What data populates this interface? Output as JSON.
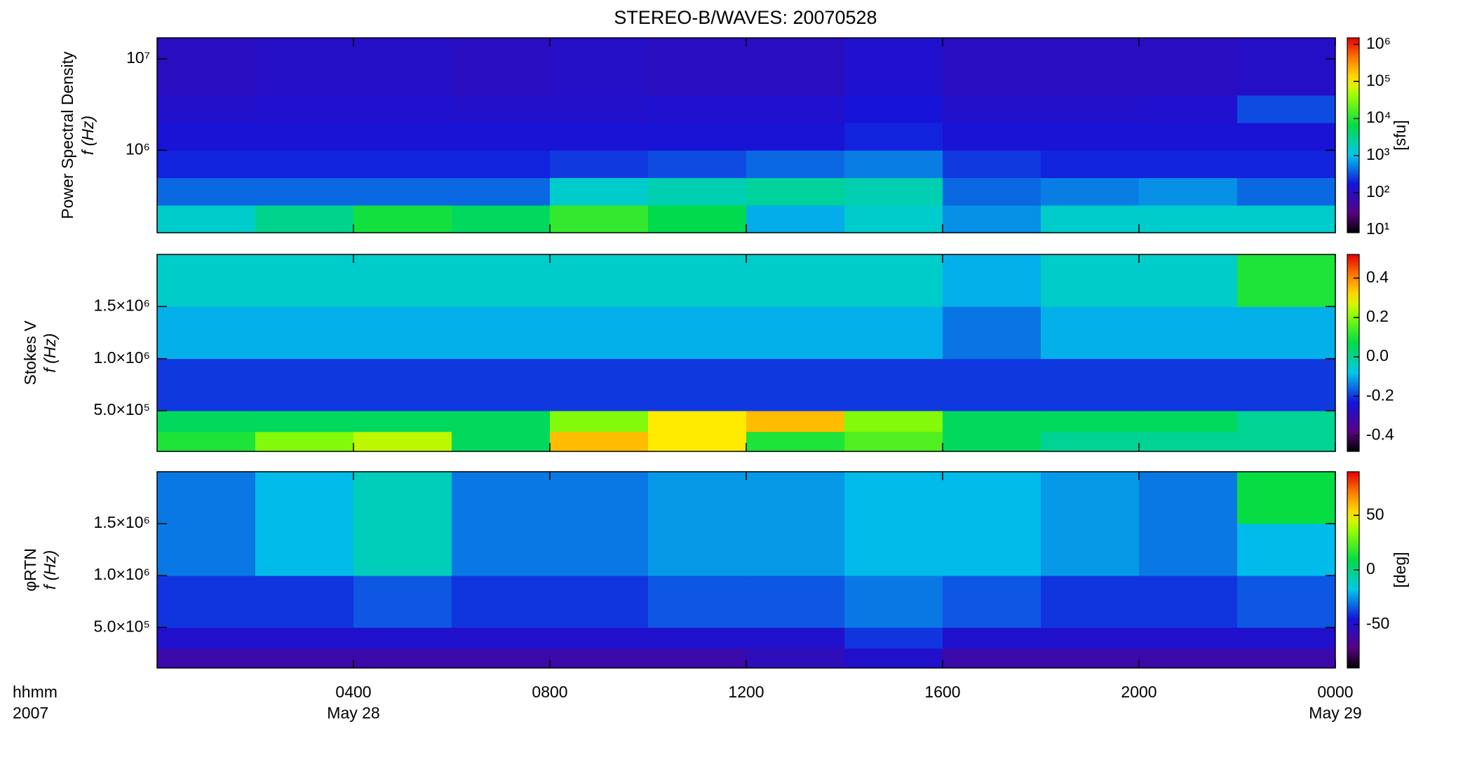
{
  "chart_data": [
    {
      "type": "heatmap",
      "title": "STEREO-B/WAVES: 20070528",
      "ylabel": [
        "Power Spectral Density",
        "f (Hz)"
      ],
      "ylog": true,
      "ylim": [
        125000,
        17000000
      ],
      "yticks": [
        {
          "value": 1000000,
          "label": "10⁶"
        },
        {
          "value": 10000000,
          "label": "10⁷"
        }
      ],
      "x_edges": [
        0,
        2,
        4,
        6,
        8,
        10,
        12,
        14,
        16,
        18,
        20,
        22,
        24
      ],
      "y_edges": [
        125000,
        250000,
        500000,
        1000000,
        2000000,
        4000000,
        17000000
      ],
      "z": [
        [
          1500,
          3000,
          8000,
          5000,
          12000,
          6000,
          800,
          1500,
          600,
          1500,
          1500,
          1500
        ],
        [
          400,
          400,
          400,
          400,
          1500,
          2000,
          2500,
          2000,
          400,
          500,
          600,
          400
        ],
        [
          200,
          200,
          200,
          200,
          250,
          300,
          400,
          500,
          250,
          200,
          200,
          200
        ],
        [
          150,
          150,
          150,
          150,
          150,
          150,
          150,
          200,
          150,
          150,
          150,
          150
        ],
        [
          120,
          130,
          130,
          120,
          120,
          130,
          130,
          160,
          120,
          120,
          130,
          300
        ],
        [
          100,
          110,
          110,
          100,
          110,
          100,
          100,
          130,
          100,
          100,
          100,
          110
        ]
      ],
      "clog": true,
      "clim": [
        8.3,
        1500000
      ],
      "cticks": [
        {
          "value": 10,
          "label": "10¹"
        },
        {
          "value": 100,
          "label": "10²"
        },
        {
          "value": 1000,
          "label": "10³"
        },
        {
          "value": 10000,
          "label": "10⁴"
        },
        {
          "value": 100000,
          "label": "10⁵"
        },
        {
          "value": 1000000,
          "label": "10⁶"
        }
      ],
      "clabel": "[sfu]"
    },
    {
      "type": "heatmap",
      "ylabel": [
        "Stokes V",
        "f (Hz)"
      ],
      "ylog": false,
      "ylim": [
        110000,
        2000000
      ],
      "yticks": [
        {
          "value": 500000,
          "label": "5.0×10⁵"
        },
        {
          "value": 1000000,
          "label": "1.0×10⁶"
        },
        {
          "value": 1500000,
          "label": "1.5×10⁶"
        }
      ],
      "x_edges": [
        0,
        2,
        4,
        6,
        8,
        10,
        12,
        14,
        16,
        18,
        20,
        22,
        24
      ],
      "y_edges": [
        110000,
        300000,
        500000,
        1000000,
        1500000,
        2000000
      ],
      "z": [
        [
          0.1,
          0.2,
          0.25,
          0.05,
          0.35,
          0.3,
          0.1,
          0.15,
          0.05,
          0.0,
          0.0,
          0.0
        ],
        [
          0.05,
          0.05,
          0.05,
          0.05,
          0.2,
          0.3,
          0.35,
          0.2,
          0.05,
          0.05,
          0.05,
          0.0
        ],
        [
          -0.2,
          -0.2,
          -0.2,
          -0.2,
          -0.2,
          -0.2,
          -0.2,
          -0.2,
          -0.2,
          -0.2,
          -0.2,
          -0.2
        ],
        [
          -0.1,
          -0.1,
          -0.1,
          -0.1,
          -0.1,
          -0.1,
          -0.1,
          -0.1,
          -0.15,
          -0.1,
          -0.1,
          -0.1
        ],
        [
          -0.05,
          -0.05,
          -0.05,
          -0.05,
          -0.05,
          -0.05,
          -0.05,
          -0.05,
          -0.1,
          -0.05,
          -0.05,
          0.1
        ]
      ],
      "clog": false,
      "clim": [
        -0.48,
        0.52
      ],
      "cticks": [
        -0.4,
        -0.2,
        {
          "value": 0,
          "label": "0.0"
        },
        0.2,
        0.4
      ]
    },
    {
      "type": "heatmap",
      "ylabel": [
        "φRTN",
        "f (Hz)"
      ],
      "ylog": false,
      "ylim": [
        110000,
        2000000
      ],
      "yticks": [
        {
          "value": 500000,
          "label": "5.0×10⁵"
        },
        {
          "value": 1000000,
          "label": "1.0×10⁶"
        },
        {
          "value": 1500000,
          "label": "1.5×10⁶"
        }
      ],
      "x_edges": [
        0,
        2,
        4,
        6,
        8,
        10,
        12,
        14,
        16,
        18,
        20,
        22,
        24
      ],
      "y_edges": [
        110000,
        300000,
        500000,
        1000000,
        1500000,
        2000000
      ],
      "z": [
        [
          -60,
          -60,
          -60,
          -60,
          -60,
          -60,
          -55,
          -50,
          -60,
          -60,
          -60,
          -60
        ],
        [
          -50,
          -50,
          -50,
          -50,
          -50,
          -50,
          -50,
          -40,
          -50,
          -50,
          -50,
          -50
        ],
        [
          -40,
          -40,
          -35,
          -40,
          -40,
          -35,
          -35,
          -30,
          -35,
          -40,
          -40,
          -35
        ],
        [
          -30,
          -20,
          -10,
          -30,
          -30,
          -25,
          -25,
          -20,
          -20,
          -25,
          -30,
          -20
        ],
        [
          -30,
          -20,
          -10,
          -30,
          -30,
          -25,
          -25,
          -20,
          -20,
          -25,
          -30,
          10
        ]
      ],
      "clog": false,
      "clim": [
        -90,
        90
      ],
      "cticks": [
        -50,
        0,
        50
      ],
      "clabel": "[deg]",
      "xlim": [
        0,
        24
      ],
      "xticks": [
        {
          "value": 4,
          "label": "0400"
        },
        {
          "value": 8,
          "label": "0800"
        },
        {
          "value": 12,
          "label": "1200"
        },
        {
          "value": 16,
          "label": "1600"
        },
        {
          "value": 20,
          "label": "2000"
        },
        {
          "value": 24,
          "label": "0000"
        }
      ],
      "xlabel": [
        "hhmm",
        "2007"
      ],
      "date_labels": [
        {
          "value": 4,
          "label": "May 28"
        },
        {
          "value": 24,
          "label": "May 29"
        }
      ]
    }
  ]
}
